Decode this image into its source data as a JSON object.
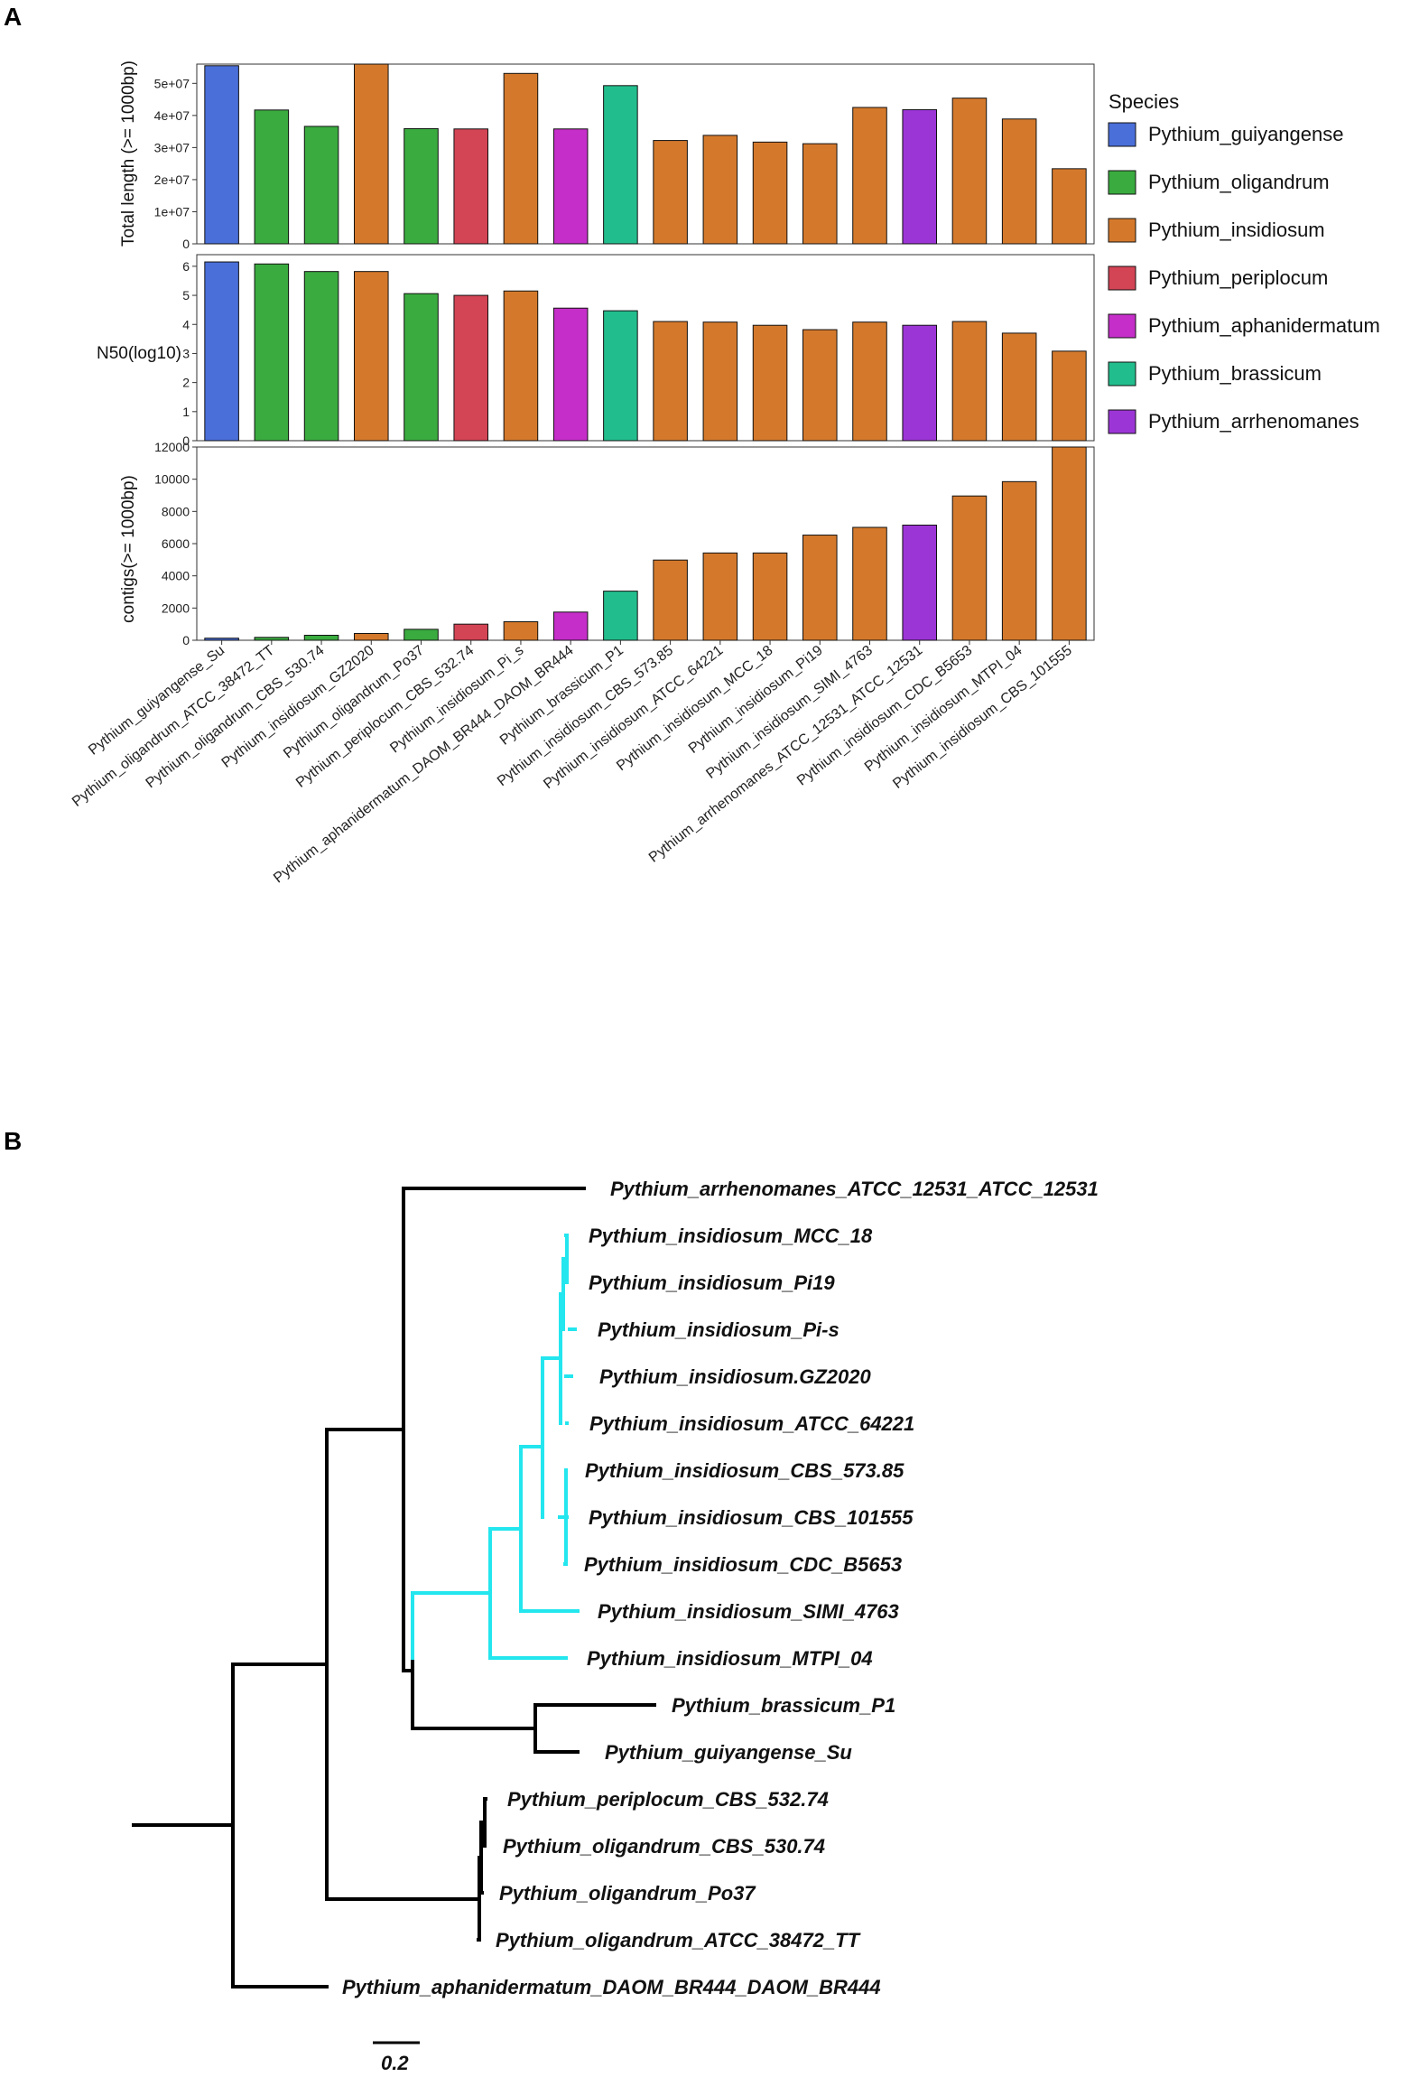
{
  "panels": {
    "a": "A",
    "b": "B"
  },
  "chart_data": {
    "type": "bar",
    "categories": [
      "Pythium_guiyangense_Su",
      "Pythium_oligandrum_ATCC_38472_TT",
      "Pythium_oligandrum_CBS_530.74",
      "Pythium_insidiosum_GZ2020",
      "Pythium_oligandrum_Po37",
      "Pythium_periplocum_CBS_532.74",
      "Pythium_insidiosum_Pi_s",
      "Pythium_aphanidermatum_DAOM_BR444_DAOM_BR444",
      "Pythium_brassicum_P1",
      "Pythium_insidiosum_CBS_573.85",
      "Pythium_insidiosum_ATCC_64221",
      "Pythium_insidiosum_MCC_18",
      "Pythium_insidiosum_Pi19",
      "Pythium_insidiosum_SIMI_4763",
      "Pythium_arrhenomanes_ATCC_12531_ATCC_12531",
      "Pythium_insidiosum_CDC_B5653",
      "Pythium_insidiosum_MTPI_04",
      "Pythium_insidiosum_CBS_101555"
    ],
    "category_species": [
      0,
      1,
      1,
      2,
      1,
      3,
      2,
      4,
      5,
      2,
      2,
      2,
      2,
      2,
      6,
      2,
      2,
      2
    ],
    "highlight_category": "Pythium_insidiosum_GZ2020",
    "highlight_color": "#e0201b",
    "series": [
      {
        "name": "Total length (>= 1000bp)",
        "values": [
          55500000,
          41700000,
          36600000,
          56000000,
          35900000,
          35800000,
          53100000,
          35800000,
          49300000,
          32200000,
          33800000,
          31700000,
          31200000,
          42500000,
          41800000,
          45400000,
          38900000,
          23400000
        ],
        "ylim": [
          0,
          56000000
        ],
        "ticks": [
          0,
          10000000,
          20000000,
          30000000,
          40000000,
          50000000
        ],
        "tick_labels": [
          "0",
          "1e+07",
          "2e+07",
          "3e+07",
          "4e+07",
          "5e+07"
        ]
      },
      {
        "name": "N50(log10)",
        "values": [
          6.15,
          6.08,
          5.82,
          5.82,
          5.06,
          5.0,
          5.15,
          4.56,
          4.47,
          4.1,
          4.08,
          3.97,
          3.82,
          4.08,
          3.97,
          4.1,
          3.7,
          3.08
        ],
        "ylim": [
          0,
          6.4
        ],
        "ticks": [
          0,
          1,
          2,
          3,
          4,
          5,
          6
        ],
        "tick_labels": [
          "0",
          "1",
          "2",
          "3",
          "4",
          "5",
          "6"
        ]
      },
      {
        "name": "contigs(>= 1000bp)",
        "values": [
          130,
          180,
          310,
          420,
          680,
          1000,
          1150,
          1750,
          3050,
          4980,
          5420,
          5420,
          6530,
          7010,
          7150,
          8960,
          9850,
          12000
        ],
        "ylim": [
          0,
          12000
        ],
        "ticks": [
          0,
          2000,
          4000,
          6000,
          8000,
          10000,
          12000
        ],
        "tick_labels": [
          "0",
          "2000",
          "4000",
          "6000",
          "8000",
          "10000",
          "12000"
        ]
      }
    ],
    "legend": {
      "title": "Species",
      "position": "right",
      "entries": [
        {
          "label": "Pythium_guiyangense",
          "color": "#4a6fd9"
        },
        {
          "label": "Pythium_oligandrum",
          "color": "#3aab3f"
        },
        {
          "label": "Pythium_insidiosum",
          "color": "#d4792c"
        },
        {
          "label": "Pythium_periplocum",
          "color": "#d34455"
        },
        {
          "label": "Pythium_aphanidermatum",
          "color": "#c52ec9"
        },
        {
          "label": "Pythium_brassicum",
          "color": "#22bd8c"
        },
        {
          "label": "Pythium_arrhenomanes",
          "color": "#9c35d6"
        }
      ]
    }
  },
  "tree": {
    "tips": [
      "Pythium_arrhenomanes_ATCC_12531_ATCC_12531",
      "Pythium_insidiosum_MCC_18",
      "Pythium_insidiosum_Pi19",
      "Pythium_insidiosum_Pi-s",
      "Pythium_insidiosum.GZ2020",
      "Pythium_insidiosum_ATCC_64221",
      "Pythium_insidiosum_CBS_573.85",
      "Pythium_insidiosum_CBS_101555",
      "Pythium_insidiosum_CDC_B5653",
      "Pythium_insidiosum_SIMI_4763",
      "Pythium_insidiosum_MTPI_04",
      "Pythium_brassicum_P1",
      "Pythium_guiyangense_Su",
      "Pythium_periplocum_CBS_532.74",
      "Pythium_oligandrum_CBS_530.74",
      "Pythium_oligandrum_Po37",
      "Pythium_oligandrum_ATCC_38472_TT",
      "Pythium_aphanidermatum_DAOM_BR444_DAOM_BR444"
    ],
    "highlight_tip": "Pythium_insidiosum.GZ2020",
    "highlight_color": "#e8186f",
    "clade_color": "#23e6ee",
    "branch_color": "#000000",
    "scale_label": "0.2"
  }
}
